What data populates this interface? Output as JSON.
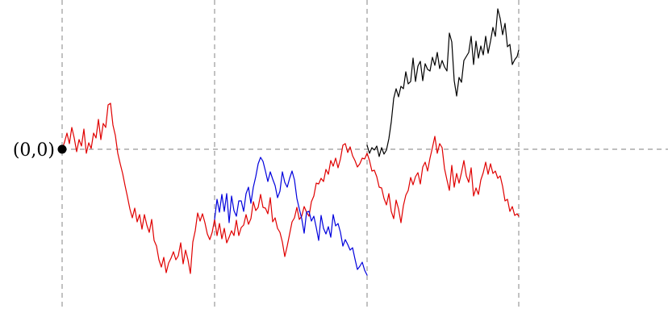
{
  "origin_label": "(0,0)",
  "colors": {
    "red_path": "#e00000",
    "blue_path": "#0000dd",
    "black_path": "#000000",
    "guides": "#999999",
    "origin_dot": "#000000"
  }
}
